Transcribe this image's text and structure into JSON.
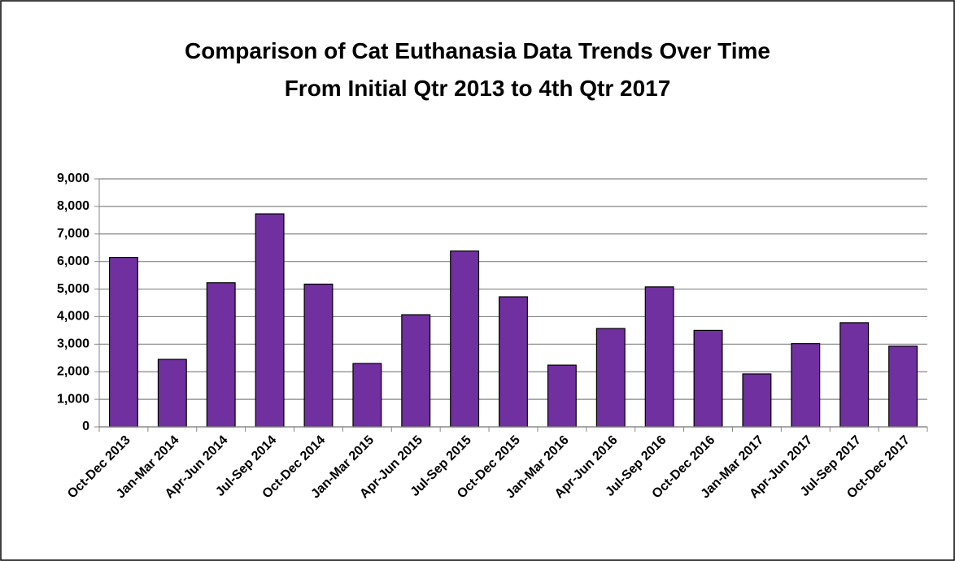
{
  "chart_data": {
    "type": "bar",
    "title": [
      "Comparison of Cat Euthanasia Data Trends Over Time",
      "From Initial Qtr 2013 to 4th Qtr 2017"
    ],
    "categories": [
      "Oct-Dec 2013",
      "Jan-Mar 2014",
      "Apr-Jun 2014",
      "Jul-Sep 2014",
      "Oct-Dec 2014",
      "Jan-Mar 2015",
      "Apr-Jun 2015",
      "Jul-Sep 2015",
      "Oct-Dec 2015",
      "Jan-Mar 2016",
      "Apr-Jun 2016",
      "Jul-Sep 2016",
      "Oct-Dec 2016",
      "Jan-Mar 2017",
      "Apr-Jun 2017",
      "Jul-Sep 2017",
      "Oct-Dec 2017"
    ],
    "values": [
      6150,
      2450,
      5230,
      7730,
      5180,
      2300,
      4070,
      6380,
      4720,
      2240,
      3570,
      5080,
      3500,
      1920,
      3020,
      3780,
      2930
    ],
    "color": "#7030a0",
    "ylim": [
      0,
      9000
    ],
    "yticks": [
      0,
      {
        "value": 1000,
        "label": "1,000"
      },
      {
        "value": 2000,
        "label": "2,000"
      },
      {
        "value": 3000,
        "label": "3,000"
      },
      {
        "value": 4000,
        "label": "4,000"
      },
      {
        "value": 5000,
        "label": "5,000"
      },
      {
        "value": 6000,
        "label": "6,000"
      },
      {
        "value": 7000,
        "label": "7,000"
      },
      {
        "value": 8000,
        "label": "8,000"
      },
      {
        "value": 9000,
        "label": "9,000"
      }
    ],
    "grid": true
  }
}
